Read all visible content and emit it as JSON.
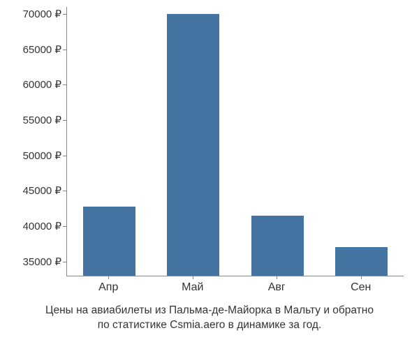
{
  "chart": {
    "type": "bar",
    "background_color": "#ffffff",
    "axis_color": "#888888",
    "text_color": "#333333",
    "font_family": "Arial",
    "y_axis": {
      "min": 33000,
      "max": 71000,
      "ticks": [
        35000,
        40000,
        45000,
        50000,
        55000,
        60000,
        65000,
        70000
      ],
      "tick_labels": [
        "35000 ₽",
        "40000 ₽",
        "45000 ₽",
        "50000 ₽",
        "55000 ₽",
        "60000 ₽",
        "65000 ₽",
        "70000 ₽"
      ],
      "label_fontsize": 15
    },
    "x_axis": {
      "categories": [
        "Апр",
        "Май",
        "Авг",
        "Сен"
      ],
      "label_fontsize": 16
    },
    "series": {
      "values": [
        42800,
        70000,
        41500,
        37000
      ],
      "bar_colors": [
        "#4573a2",
        "#4573a2",
        "#4573a2",
        "#4573a2"
      ],
      "bar_width_fraction": 0.62
    },
    "caption_line1": "Цены на авиабилеты из Пальма-де-Майорка в Мальту и обратно",
    "caption_line2": "по статистике Csmia.aero в динамике за год.",
    "caption_fontsize": 15.5
  }
}
